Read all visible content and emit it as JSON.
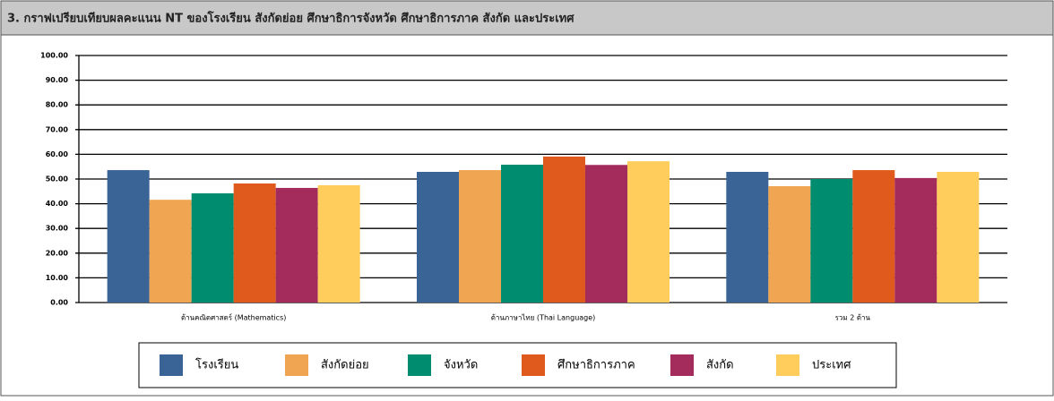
{
  "chart_data": {
    "type": "bar",
    "title": "3. กราฟเปรียบเทียบผลคะแนน NT ของโรงเรียน สังกัดย่อย ศึกษาธิการจังหวัด ศึกษาธิการภาค สังกัด และประเทศ",
    "categories": [
      "ด้านคณิตศาสตร์ (Mathematics)",
      "ด้านภาษาไทย (Thai Language)",
      "รวม 2 ด้าน"
    ],
    "series": [
      {
        "name": "โรงเรียน",
        "color": "#3a6496",
        "values": [
          53.6,
          52.9,
          52.9
        ]
      },
      {
        "name": "สังกัดย่อย",
        "color": "#f0a552",
        "values": [
          41.6,
          53.6,
          47.1
        ]
      },
      {
        "name": "จังหวัด",
        "color": "#008c6e",
        "values": [
          44.2,
          55.8,
          50.0
        ]
      },
      {
        "name": "ศึกษาธิการภาค",
        "color": "#e05a1e",
        "values": [
          48.2,
          59.1,
          53.6
        ]
      },
      {
        "name": "สังกัด",
        "color": "#a32c5c",
        "values": [
          46.4,
          55.7,
          50.4
        ]
      },
      {
        "name": "ประเทศ",
        "color": "#ffcd5c",
        "values": [
          47.5,
          57.2,
          52.9
        ]
      }
    ],
    "ylim": [
      0,
      100
    ],
    "yticks": [
      {
        "value": 0,
        "label": "0.00"
      },
      {
        "value": 10,
        "label": "10.00"
      },
      {
        "value": 20,
        "label": "20.00"
      },
      {
        "value": 30,
        "label": "30.00"
      },
      {
        "value": 40,
        "label": "40.00"
      },
      {
        "value": 50,
        "label": "50.00"
      },
      {
        "value": 60,
        "label": "60.00"
      },
      {
        "value": 70,
        "label": "70.00"
      },
      {
        "value": 80,
        "label": "80.00"
      },
      {
        "value": 90,
        "label": "90.00"
      },
      {
        "value": 100,
        "label": "100.00"
      }
    ],
    "grid": true,
    "legend": "bottom"
  }
}
